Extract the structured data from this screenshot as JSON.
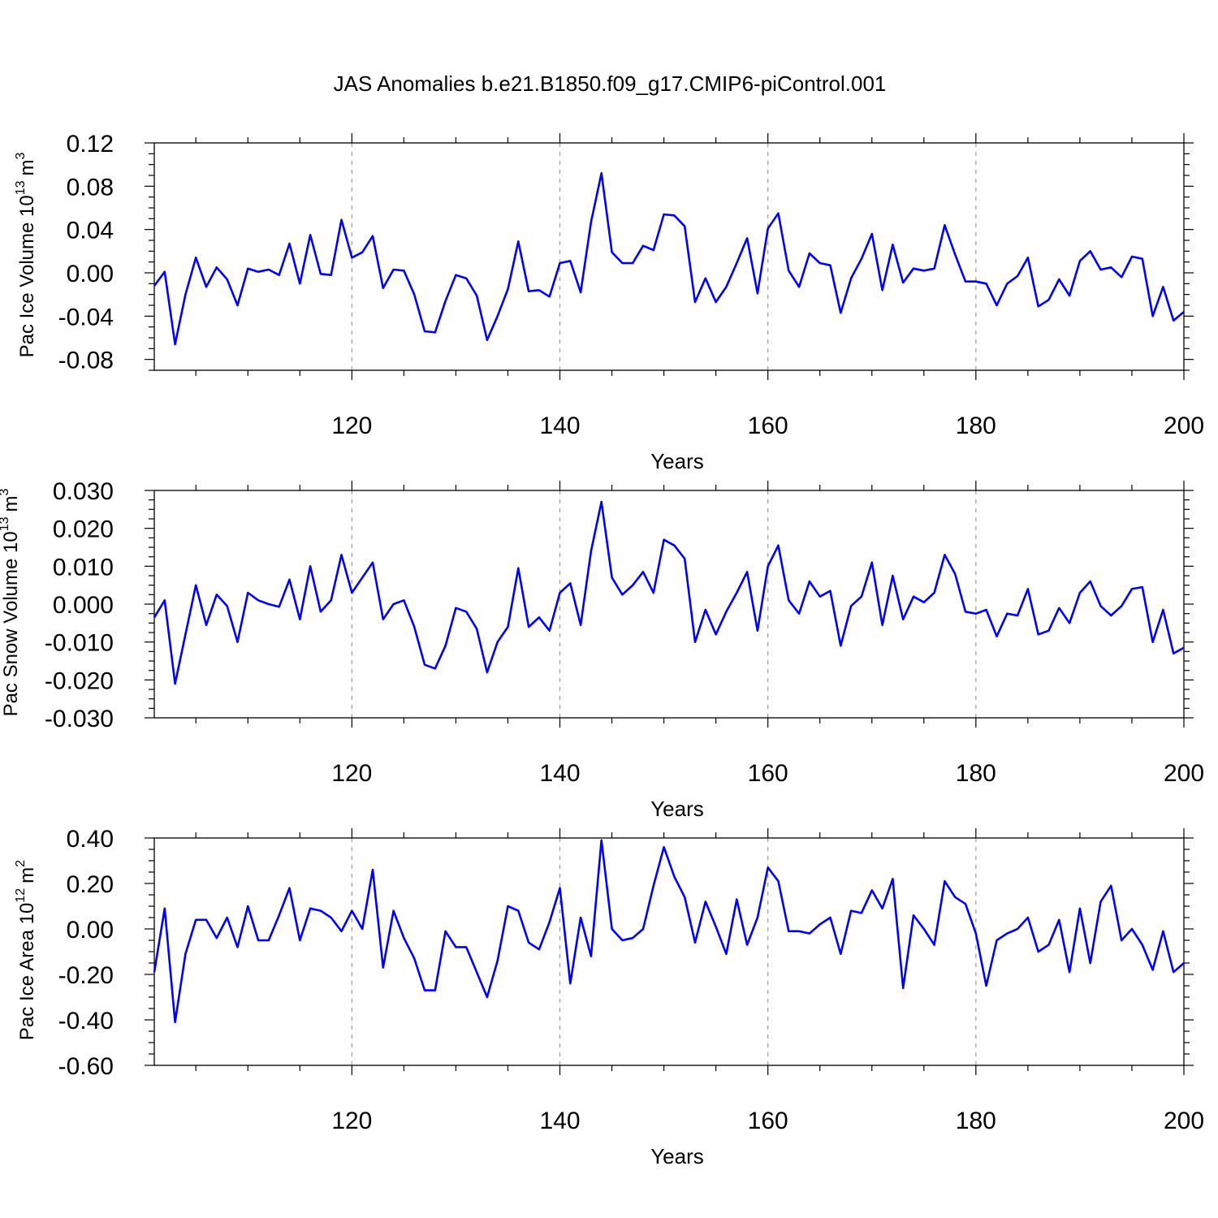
{
  "title": "JAS Anomalies b.e21.B1850.f09_g17.CMIP6-piControl.001",
  "colors": {
    "line": "#0000ff",
    "grid": "#9a9a9a",
    "axis": "#000000"
  },
  "chart_data": [
    {
      "type": "line",
      "xlabel": "Years",
      "ylabel": "Pac Ice Volume 10",
      "ylabel_exp": "13",
      "ylabel_unit": "m",
      "ylabel_unit_exp": "3",
      "xlim": [
        101,
        200
      ],
      "ylim": [
        -0.09,
        0.12
      ],
      "yticks": [
        -0.08,
        -0.04,
        0.0,
        0.04,
        0.08,
        0.12
      ],
      "ytick_labels": [
        "-0.08",
        "-0.04",
        "0.00",
        "0.04",
        "0.08",
        "0.12"
      ],
      "xticks": [
        120,
        140,
        160,
        180,
        200
      ],
      "xtick_labels": [
        "120",
        "140",
        "160",
        "180",
        "200"
      ],
      "grid_x": [
        120,
        140,
        160,
        180
      ],
      "x_start": 101,
      "series": [
        {
          "values": [
            -0.012,
            0.001,
            -0.066,
            -0.02,
            0.014,
            -0.013,
            0.005,
            -0.006,
            -0.03,
            0.004,
            0.001,
            0.003,
            -0.002,
            0.027,
            -0.01,
            0.035,
            -0.001,
            -0.002,
            0.049,
            0.014,
            0.019,
            0.034,
            -0.014,
            0.003,
            0.002,
            -0.02,
            -0.054,
            -0.055,
            -0.026,
            -0.002,
            -0.005,
            -0.021,
            -0.062,
            -0.04,
            -0.015,
            0.029,
            -0.017,
            -0.016,
            -0.022,
            0.009,
            0.011,
            -0.018,
            0.047,
            0.092,
            0.019,
            0.009,
            0.009,
            0.025,
            0.021,
            0.054,
            0.053,
            0.043,
            -0.027,
            -0.005,
            -0.027,
            -0.013,
            0.009,
            0.032,
            -0.019,
            0.041,
            0.055,
            0.002,
            -0.013,
            0.018,
            0.009,
            0.007,
            -0.037,
            -0.005,
            0.013,
            0.036,
            -0.016,
            0.026,
            -0.009,
            0.004,
            0.002,
            0.004,
            0.044,
            0.017,
            -0.008,
            -0.008,
            -0.01,
            -0.03,
            -0.01,
            -0.003,
            0.014,
            -0.031,
            -0.025,
            -0.006,
            -0.021,
            0.011,
            0.02,
            0.003,
            0.005,
            -0.004,
            0.015,
            0.013,
            -0.04,
            -0.013,
            -0.044,
            -0.036
          ]
        }
      ]
    },
    {
      "type": "line",
      "xlabel": "Years",
      "ylabel": "Pac Snow Volume 10",
      "ylabel_exp": "13",
      "ylabel_unit": "m",
      "ylabel_unit_exp": "3",
      "xlim": [
        101,
        200
      ],
      "ylim": [
        -0.03,
        0.03
      ],
      "yticks": [
        -0.03,
        -0.02,
        -0.01,
        0.0,
        0.01,
        0.02,
        0.03
      ],
      "ytick_labels": [
        "-0.030",
        "-0.020",
        "-0.010",
        "0.000",
        "0.010",
        "0.020",
        "0.030"
      ],
      "xticks": [
        120,
        140,
        160,
        180,
        200
      ],
      "xtick_labels": [
        "120",
        "140",
        "160",
        "180",
        "200"
      ],
      "grid_x": [
        120,
        140,
        160,
        180
      ],
      "x_start": 101,
      "series": [
        {
          "values": [
            -0.0035,
            0.001,
            -0.021,
            -0.008,
            0.005,
            -0.0055,
            0.0025,
            -0.0005,
            -0.01,
            0.003,
            0.001,
            0.0,
            -0.0007,
            0.0065,
            -0.004,
            0.01,
            -0.002,
            0.001,
            0.013,
            0.003,
            0.007,
            0.011,
            -0.004,
            0.0,
            0.001,
            -0.006,
            -0.016,
            -0.017,
            -0.011,
            -0.001,
            -0.002,
            -0.0065,
            -0.018,
            -0.01,
            -0.006,
            0.0095,
            -0.006,
            -0.0035,
            -0.007,
            0.003,
            0.0055,
            -0.0055,
            0.014,
            0.027,
            0.007,
            0.0025,
            0.005,
            0.0085,
            0.003,
            0.017,
            0.0155,
            0.012,
            -0.01,
            -0.0015,
            -0.008,
            -0.002,
            0.003,
            0.0085,
            -0.007,
            0.01,
            0.0155,
            0.001,
            -0.0025,
            0.006,
            0.002,
            0.0035,
            -0.011,
            -0.0005,
            0.002,
            0.011,
            -0.0055,
            0.0075,
            -0.004,
            0.002,
            0.0005,
            0.003,
            0.013,
            0.008,
            -0.002,
            -0.0025,
            -0.0015,
            -0.0085,
            -0.0025,
            -0.003,
            0.004,
            -0.008,
            -0.007,
            -0.001,
            -0.005,
            0.003,
            0.006,
            -0.0005,
            -0.003,
            -0.0005,
            0.004,
            0.0045,
            -0.01,
            -0.0015,
            -0.013,
            -0.0115
          ]
        }
      ]
    },
    {
      "type": "line",
      "xlabel": "Years",
      "ylabel": "Pac Ice Area 10",
      "ylabel_exp": "12",
      "ylabel_unit": "m",
      "ylabel_unit_exp": "2",
      "xlim": [
        101,
        200
      ],
      "ylim": [
        -0.6,
        0.4
      ],
      "yticks": [
        -0.6,
        -0.4,
        -0.2,
        0.0,
        0.2,
        0.4
      ],
      "ytick_labels": [
        "-0.60",
        "-0.40",
        "-0.20",
        "0.00",
        "0.20",
        "0.40"
      ],
      "xticks": [
        120,
        140,
        160,
        180,
        200
      ],
      "xtick_labels": [
        "120",
        "140",
        "160",
        "180",
        "200"
      ],
      "grid_x": [
        120,
        140,
        160,
        180
      ],
      "x_start": 101,
      "series": [
        {
          "values": [
            -0.19,
            0.09,
            -0.41,
            -0.11,
            0.04,
            0.04,
            -0.04,
            0.05,
            -0.08,
            0.1,
            -0.05,
            -0.05,
            0.06,
            0.18,
            -0.05,
            0.09,
            0.08,
            0.05,
            -0.01,
            0.08,
            0.0,
            0.26,
            -0.17,
            0.08,
            -0.04,
            -0.13,
            -0.27,
            -0.27,
            -0.01,
            -0.08,
            -0.08,
            -0.19,
            -0.3,
            -0.14,
            0.1,
            0.08,
            -0.06,
            -0.09,
            0.03,
            0.18,
            -0.24,
            0.05,
            -0.12,
            0.39,
            0.0,
            -0.05,
            -0.04,
            0.0,
            0.19,
            0.36,
            0.23,
            0.14,
            -0.06,
            0.12,
            0.01,
            -0.11,
            0.13,
            -0.07,
            0.05,
            0.27,
            0.21,
            -0.01,
            -0.01,
            -0.02,
            0.02,
            0.05,
            -0.11,
            0.08,
            0.07,
            0.17,
            0.09,
            0.22,
            -0.26,
            0.06,
            0.0,
            -0.07,
            0.21,
            0.14,
            0.11,
            -0.02,
            -0.25,
            -0.05,
            -0.02,
            0.0,
            0.05,
            -0.1,
            -0.07,
            0.04,
            -0.19,
            0.09,
            -0.15,
            0.12,
            0.19,
            -0.05,
            0.0,
            -0.07,
            -0.18,
            -0.01,
            -0.19,
            -0.15
          ]
        }
      ]
    }
  ]
}
